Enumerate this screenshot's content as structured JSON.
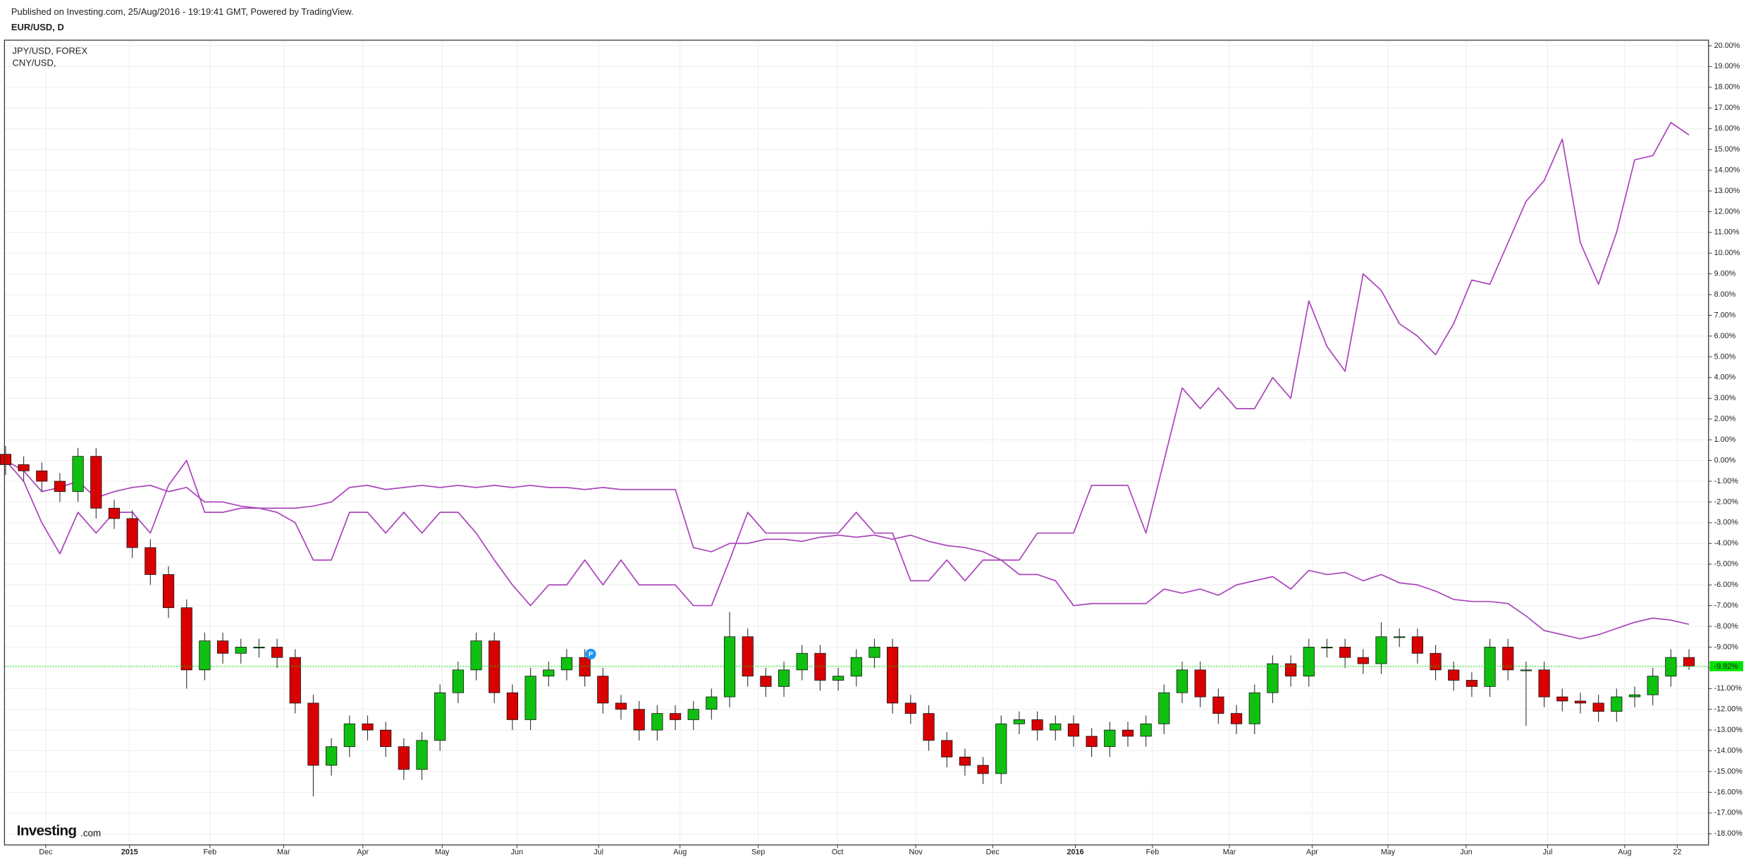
{
  "chart_data": {
    "type": "candlestick",
    "title": "Published on Investing.com, 25/Aug/2016 - 19:19:41 GMT, Powered by TradingView.",
    "categories": [
      null,
      null,
      null,
      null,
      null,
      null,
      null,
      null,
      null,
      null,
      null,
      null,
      null,
      null,
      null,
      null,
      null,
      null,
      null,
      null,
      null,
      null,
      null,
      null,
      null,
      null,
      null,
      null,
      null,
      null,
      null,
      null,
      null,
      null,
      null,
      null,
      null,
      null,
      null,
      null,
      null,
      null,
      null,
      null,
      null,
      null,
      null,
      null,
      null,
      null,
      null,
      null,
      null,
      null,
      null,
      null,
      null,
      null,
      null,
      null,
      null,
      null,
      null,
      null,
      null,
      null,
      null,
      null,
      null,
      null,
      null,
      null,
      null,
      null,
      null,
      null,
      null,
      null,
      null,
      null,
      null,
      null,
      null,
      null,
      null,
      null,
      null,
      null,
      null,
      null,
      null,
      null,
      null,
      null
    ],
    "series": [
      {
        "name": "EUR/USD, D",
        "type": "candlestick",
        "up_color": "#10c010",
        "down_color": "#d80000",
        "open": [
          0.3,
          -0.2,
          -0.5,
          -1.0,
          -1.5,
          0.2,
          -2.3,
          -2.8,
          -4.2,
          -5.5,
          -7.1,
          -10.1,
          -8.7,
          -9.3,
          -9.0,
          -9.0,
          -9.5,
          -11.7,
          -14.7,
          -13.8,
          -12.7,
          -13.0,
          -13.8,
          -14.9,
          -13.5,
          -11.2,
          -10.1,
          -8.7,
          -11.2,
          -12.5,
          -10.4,
          -10.1,
          -9.5,
          -10.4,
          -11.7,
          -12.0,
          -13.0,
          -12.2,
          -12.5,
          -12.0,
          -11.4,
          -8.5,
          -10.4,
          -10.9,
          -10.1,
          -9.3,
          -10.6,
          -10.4,
          -9.5,
          -9.0,
          -11.7,
          -12.2,
          -13.5,
          -14.3,
          -14.7,
          -15.1,
          -12.7,
          -12.5,
          -13.0,
          -12.7,
          -13.3,
          -13.8,
          -13.0,
          -13.3,
          -12.7,
          -11.2,
          -10.1,
          -11.4,
          -12.2,
          -12.7,
          -11.2,
          -9.8,
          -10.4,
          -9.0,
          -9.0,
          -9.5,
          -9.8,
          -8.5,
          -8.5,
          -9.3,
          -10.1,
          -10.6,
          -10.9,
          -9.0,
          -10.1,
          -10.1,
          -11.4,
          -11.6,
          -11.7,
          -12.1,
          -11.4,
          -11.3,
          -10.4,
          -9.5
        ],
        "high": [
          0.7,
          0.2,
          -0.1,
          -0.6,
          0.6,
          0.6,
          -1.9,
          -2.4,
          -3.8,
          -5.1,
          -6.7,
          -8.3,
          -8.3,
          -8.6,
          -8.6,
          -8.6,
          -9.1,
          -11.3,
          -13.4,
          -12.3,
          -12.3,
          -12.6,
          -13.4,
          -13.1,
          -10.8,
          -9.7,
          -8.3,
          -8.3,
          -10.8,
          -10.0,
          -9.7,
          -9.1,
          -9.1,
          -10.0,
          -11.3,
          -11.6,
          -11.8,
          -11.8,
          -11.6,
          -11.0,
          -7.3,
          -8.1,
          -10.0,
          -9.7,
          -8.9,
          -8.9,
          -10.0,
          -9.1,
          -8.6,
          -8.6,
          -11.3,
          -11.8,
          -13.1,
          -13.9,
          -14.3,
          -12.3,
          -12.1,
          -12.1,
          -12.3,
          -12.3,
          -12.9,
          -12.6,
          -12.6,
          -12.3,
          -10.8,
          -9.7,
          -9.7,
          -11.0,
          -11.8,
          -10.8,
          -9.4,
          -9.4,
          -8.6,
          -8.6,
          -8.6,
          -9.1,
          -7.8,
          -8.1,
          -8.1,
          -8.9,
          -9.7,
          -10.2,
          -8.6,
          -8.6,
          -9.7,
          -9.7,
          -11.0,
          -11.2,
          -11.3,
          -11.0,
          -10.9,
          -10.0,
          -9.1,
          -9.1
        ],
        "low": [
          -0.7,
          -1.0,
          -1.5,
          -2.0,
          -2.0,
          -2.8,
          -3.3,
          -4.7,
          -6.0,
          -7.6,
          -11.0,
          -10.6,
          -9.8,
          -9.8,
          -9.5,
          -10.0,
          -12.2,
          -16.2,
          -15.2,
          -14.3,
          -13.5,
          -14.3,
          -15.4,
          -15.4,
          -14.0,
          -11.7,
          -10.6,
          -11.7,
          -13.0,
          -13.0,
          -10.9,
          -10.6,
          -10.9,
          -12.2,
          -12.5,
          -13.5,
          -13.5,
          -13.0,
          -13.0,
          -12.5,
          -11.9,
          -10.9,
          -11.4,
          -11.4,
          -10.6,
          -11.1,
          -11.1,
          -10.9,
          -10.0,
          -12.2,
          -12.7,
          -14.0,
          -14.8,
          -15.2,
          -15.6,
          -15.6,
          -13.2,
          -13.5,
          -13.5,
          -13.8,
          -14.3,
          -14.3,
          -13.8,
          -13.8,
          -13.2,
          -11.7,
          -11.9,
          -12.7,
          -13.2,
          -13.2,
          -11.7,
          -10.9,
          -10.9,
          -9.5,
          -10.0,
          -10.3,
          -10.3,
          -9.0,
          -9.8,
          -10.6,
          -11.1,
          -11.4,
          -11.4,
          -10.6,
          -12.8,
          -11.9,
          -12.1,
          -12.2,
          -12.6,
          -12.6,
          -11.9,
          -11.8,
          -10.9,
          -10.1
        ],
        "close": [
          -0.2,
          -0.5,
          -1.0,
          -1.5,
          0.2,
          -2.3,
          -2.8,
          -4.2,
          -5.5,
          -7.1,
          -10.1,
          -8.7,
          -9.3,
          -9.0,
          -9.0,
          -9.5,
          -11.7,
          -14.7,
          -13.8,
          -12.7,
          -13.0,
          -13.8,
          -14.9,
          -13.5,
          -11.2,
          -10.1,
          -8.7,
          -11.2,
          -12.5,
          -10.4,
          -10.1,
          -9.5,
          -10.4,
          -11.7,
          -12.0,
          -13.0,
          -12.2,
          -12.5,
          -12.0,
          -11.4,
          -8.5,
          -10.4,
          -10.9,
          -10.1,
          -9.3,
          -10.6,
          -10.4,
          -9.5,
          -9.0,
          -11.7,
          -12.2,
          -13.5,
          -14.3,
          -14.7,
          -15.1,
          -12.7,
          -12.5,
          -13.0,
          -12.7,
          -13.3,
          -13.8,
          -13.0,
          -13.3,
          -12.7,
          -11.2,
          -10.1,
          -11.4,
          -12.2,
          -12.7,
          -11.2,
          -9.8,
          -10.4,
          -9.0,
          -9.0,
          -9.5,
          -9.8,
          -8.5,
          -8.5,
          -9.3,
          -10.1,
          -10.6,
          -10.9,
          -9.0,
          -10.1,
          -10.1,
          -11.4,
          -11.6,
          -11.7,
          -12.1,
          -11.4,
          -11.3,
          -10.4,
          -9.5,
          -9.92
        ]
      },
      {
        "name": "JPY/USD, FOREX",
        "type": "line",
        "color": "#ab47bc",
        "values": [
          0,
          -1.0,
          -3.0,
          -4.5,
          -2.5,
          -3.5,
          -2.5,
          -2.5,
          -3.5,
          -1.2,
          0.0,
          -2.5,
          -2.5,
          -2.3,
          -2.3,
          -2.5,
          -3.0,
          -4.8,
          -4.8,
          -2.5,
          -2.5,
          -3.5,
          -2.5,
          -3.5,
          -2.5,
          -2.5,
          -3.5,
          -4.8,
          -6.0,
          -7.0,
          -6.0,
          -6.0,
          -4.8,
          -6.0,
          -4.8,
          -6.0,
          -6.0,
          -6.0,
          -7.0,
          -7.0,
          -4.8,
          -2.5,
          -3.5,
          -3.5,
          -3.5,
          -3.5,
          -3.5,
          -2.5,
          -3.5,
          -3.5,
          -5.8,
          -5.8,
          -4.8,
          -5.8,
          -4.8,
          -4.8,
          -4.8,
          -3.5,
          -3.5,
          -3.5,
          -1.2,
          -1.2,
          -1.2,
          -3.5,
          0.0,
          3.5,
          2.5,
          3.5,
          2.5,
          2.5,
          4.0,
          3.0,
          7.7,
          5.5,
          4.3,
          9.0,
          8.2,
          6.6,
          6.0,
          5.1,
          6.6,
          8.7,
          8.5,
          10.5,
          12.5,
          13.5,
          15.5,
          10.5,
          8.5,
          11.0,
          14.5,
          14.7,
          16.3,
          15.7
        ]
      },
      {
        "name": "CNY/USD,",
        "type": "line",
        "color": "#ab47bc",
        "values": [
          0,
          -0.5,
          -1.5,
          -1.3,
          -1.0,
          -1.8,
          -1.5,
          -1.3,
          -1.2,
          -1.5,
          -1.3,
          -2.0,
          -2.0,
          -2.2,
          -2.3,
          -2.3,
          -2.3,
          -2.2,
          -2.0,
          -1.3,
          -1.2,
          -1.4,
          -1.3,
          -1.2,
          -1.3,
          -1.2,
          -1.3,
          -1.2,
          -1.3,
          -1.2,
          -1.3,
          -1.3,
          -1.4,
          -1.3,
          -1.4,
          -1.4,
          -1.4,
          -1.4,
          -4.2,
          -4.4,
          -4.0,
          -4.0,
          -3.8,
          -3.8,
          -3.9,
          -3.7,
          -3.6,
          -3.7,
          -3.6,
          -3.8,
          -3.6,
          -3.9,
          -4.1,
          -4.2,
          -4.4,
          -4.8,
          -5.5,
          -5.5,
          -5.8,
          -7.0,
          -6.9,
          -6.9,
          -6.9,
          -6.9,
          -6.2,
          -6.4,
          -6.2,
          -6.5,
          -6.0,
          -5.8,
          -5.6,
          -6.2,
          -5.3,
          -5.5,
          -5.4,
          -5.8,
          -5.5,
          -5.9,
          -6.0,
          -6.3,
          -6.7,
          -6.8,
          -6.8,
          -6.9,
          -7.5,
          -8.2,
          -8.4,
          -8.6,
          -8.4,
          -8.1,
          -7.8,
          -7.6,
          -7.7,
          -7.9
        ]
      }
    ],
    "last_price": {
      "value": -9.92,
      "label": "-9.92%",
      "color": "#00e000"
    },
    "annotations": [
      {
        "label": "P"
      }
    ],
    "watermark": [
      "Investing",
      ".com"
    ],
    "xlim": [
      -0.06,
      94.08
    ],
    "xticks": [
      {
        "value": 2.22,
        "label": "Dec"
      },
      {
        "value": 6.85,
        "label": "2015"
      },
      {
        "value": 11.29,
        "label": "Feb"
      },
      {
        "value": 15.36,
        "label": "Mar"
      },
      {
        "value": 19.74,
        "label": "Apr"
      },
      {
        "value": 24.12,
        "label": "May"
      },
      {
        "value": 28.25,
        "label": "Jun"
      },
      {
        "value": 32.76,
        "label": "Jul"
      },
      {
        "value": 37.26,
        "label": "Aug"
      },
      {
        "value": 41.58,
        "label": "Sep"
      },
      {
        "value": 45.96,
        "label": "Oct"
      },
      {
        "value": 50.28,
        "label": "Nov"
      },
      {
        "value": 54.53,
        "label": "Dec"
      },
      {
        "value": 59.1,
        "label": "2016"
      },
      {
        "value": 63.36,
        "label": "Feb"
      },
      {
        "value": 67.61,
        "label": "Mar"
      },
      {
        "value": 72.18,
        "label": "Apr"
      },
      {
        "value": 76.37,
        "label": "May"
      },
      {
        "value": 80.69,
        "label": "Jun"
      },
      {
        "value": 85.19,
        "label": "Jul"
      },
      {
        "value": 89.45,
        "label": "Aug"
      },
      {
        "value": 92.35,
        "label": "22"
      }
    ],
    "ylim": [
      -18.54,
      20.27
    ],
    "yticks": [
      {
        "value": 20,
        "label": "20.00%"
      },
      {
        "value": 19,
        "label": "19.00%"
      },
      {
        "value": 18,
        "label": "18.00%"
      },
      {
        "value": 17,
        "label": "17.00%"
      },
      {
        "value": 16,
        "label": "16.00%"
      },
      {
        "value": 15,
        "label": "15.00%"
      },
      {
        "value": 14,
        "label": "14.00%"
      },
      {
        "value": 13,
        "label": "13.00%"
      },
      {
        "value": 12,
        "label": "12.00%"
      },
      {
        "value": 11,
        "label": "11.00%"
      },
      {
        "value": 10,
        "label": "10.00%"
      },
      {
        "value": 9,
        "label": "9.00%"
      },
      {
        "value": 8,
        "label": "8.00%"
      },
      {
        "value": 7,
        "label": "7.00%"
      },
      {
        "value": 6,
        "label": "6.00%"
      },
      {
        "value": 5,
        "label": "5.00%"
      },
      {
        "value": 4,
        "label": "4.00%"
      },
      {
        "value": 3,
        "label": "3.00%"
      },
      {
        "value": 2,
        "label": "2.00%"
      },
      {
        "value": 1,
        "label": "1.00%"
      },
      {
        "value": 0,
        "label": "0.00%"
      },
      {
        "value": -1,
        "label": "-1.00%"
      },
      {
        "value": -2,
        "label": "-2.00%"
      },
      {
        "value": -3,
        "label": "-3.00%"
      },
      {
        "value": -4,
        "label": "-4.00%"
      },
      {
        "value": -5,
        "label": "-5.00%"
      },
      {
        "value": -6,
        "label": "-6.00%"
      },
      {
        "value": -7,
        "label": "-7.00%"
      },
      {
        "value": -8,
        "label": "-8.00%"
      },
      {
        "value": -9,
        "label": "-9.00%"
      },
      {
        "value": -10,
        "label": "-10.00%"
      },
      {
        "value": -11,
        "label": "-11.00%"
      },
      {
        "value": -12,
        "label": "-12.00%"
      },
      {
        "value": -13,
        "label": "-13.00%"
      },
      {
        "value": -14,
        "label": "-14.00%"
      },
      {
        "value": -15,
        "label": "-15.00%"
      },
      {
        "value": -16,
        "label": "-16.00%"
      },
      {
        "value": -17,
        "label": "-17.00%"
      },
      {
        "value": -18,
        "label": "-18.00%"
      }
    ],
    "grid": true
  }
}
